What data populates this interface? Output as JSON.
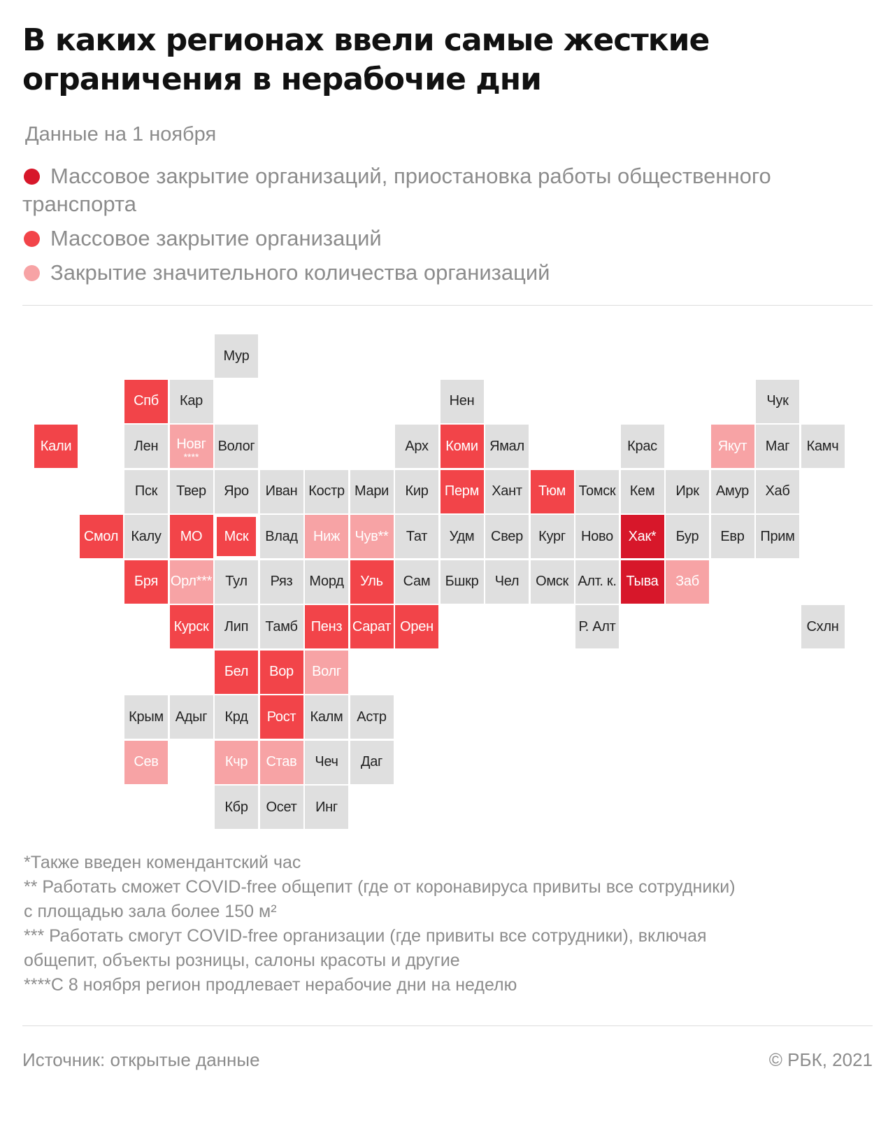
{
  "title_lines": [
    "В каких регионах ввели самые жесткие",
    "ограничения в нерабочие дни"
  ],
  "subtitle": "Данные на 1 ноября",
  "legend": [
    {
      "level": 1,
      "color": "#d7172a",
      "label": "Массовое закрытие организаций, приостановка работы общественного транспорта"
    },
    {
      "level": 2,
      "color": "#f24449",
      "label": "Массовое закрытие организаций"
    },
    {
      "level": 3,
      "color": "#f7a3a5",
      "label": "Закрытие значительного количества организаций"
    }
  ],
  "colors": {
    "none": "#dfdfdf",
    "level1": "#d7172a",
    "level2": "#f24449",
    "level3": "#f7a3a5"
  },
  "map": {
    "grid_columns": 18,
    "grid_rows": 11,
    "regions": [
      {
        "label": "Мур",
        "col": 5,
        "row": 0,
        "level": 0
      },
      {
        "label": "Спб",
        "col": 3,
        "row": 1,
        "level": 2
      },
      {
        "label": "Кар",
        "col": 4,
        "row": 1,
        "level": 0
      },
      {
        "label": "Нен",
        "col": 10,
        "row": 1,
        "level": 0
      },
      {
        "label": "Чук",
        "col": 17,
        "row": 1,
        "level": 0
      },
      {
        "label": "Кали",
        "col": 1,
        "row": 2,
        "level": 2
      },
      {
        "label": "Лен",
        "col": 3,
        "row": 2,
        "level": 0
      },
      {
        "label": "Новг",
        "col": 4,
        "row": 2,
        "level": 3,
        "mark": "****"
      },
      {
        "label": "Волог",
        "col": 5,
        "row": 2,
        "level": 0
      },
      {
        "label": "Арх",
        "col": 9,
        "row": 2,
        "level": 0
      },
      {
        "label": "Коми",
        "col": 10,
        "row": 2,
        "level": 2
      },
      {
        "label": "Ямал",
        "col": 11,
        "row": 2,
        "level": 0
      },
      {
        "label": "Крас",
        "col": 14,
        "row": 2,
        "level": 0
      },
      {
        "label": "Якут",
        "col": 16,
        "row": 2,
        "level": 3
      },
      {
        "label": "Маг",
        "col": 17,
        "row": 2,
        "level": 0
      },
      {
        "label": "Камч",
        "col": 18,
        "row": 2,
        "level": 0
      },
      {
        "label": "Пск",
        "col": 3,
        "row": 3,
        "level": 0
      },
      {
        "label": "Твер",
        "col": 4,
        "row": 3,
        "level": 0
      },
      {
        "label": "Яро",
        "col": 5,
        "row": 3,
        "level": 0
      },
      {
        "label": "Иван",
        "col": 6,
        "row": 3,
        "level": 0
      },
      {
        "label": "Костр",
        "col": 7,
        "row": 3,
        "level": 0
      },
      {
        "label": "Мари",
        "col": 8,
        "row": 3,
        "level": 0
      },
      {
        "label": "Кир",
        "col": 9,
        "row": 3,
        "level": 0
      },
      {
        "label": "Перм",
        "col": 10,
        "row": 3,
        "level": 2
      },
      {
        "label": "Хант",
        "col": 11,
        "row": 3,
        "level": 0
      },
      {
        "label": "Тюм",
        "col": 12,
        "row": 3,
        "level": 2
      },
      {
        "label": "Томск",
        "col": 13,
        "row": 3,
        "level": 0
      },
      {
        "label": "Кем",
        "col": 14,
        "row": 3,
        "level": 0
      },
      {
        "label": "Ирк",
        "col": 15,
        "row": 3,
        "level": 0
      },
      {
        "label": "Амур",
        "col": 16,
        "row": 3,
        "level": 0
      },
      {
        "label": "Хаб",
        "col": 17,
        "row": 3,
        "level": 0
      },
      {
        "label": "Смол",
        "col": 2,
        "row": 4,
        "level": 2
      },
      {
        "label": "Калу",
        "col": 3,
        "row": 4,
        "level": 0
      },
      {
        "label": "МО",
        "col": 4,
        "row": 4,
        "level": 2
      },
      {
        "label": "Мск",
        "col": 5,
        "row": 4,
        "level": 2,
        "inset": true
      },
      {
        "label": "Влад",
        "col": 6,
        "row": 4,
        "level": 0
      },
      {
        "label": "Ниж",
        "col": 7,
        "row": 4,
        "level": 3
      },
      {
        "label": "Чув**",
        "col": 8,
        "row": 4,
        "level": 3
      },
      {
        "label": "Тат",
        "col": 9,
        "row": 4,
        "level": 0
      },
      {
        "label": "Удм",
        "col": 10,
        "row": 4,
        "level": 0
      },
      {
        "label": "Свер",
        "col": 11,
        "row": 4,
        "level": 0
      },
      {
        "label": "Кург",
        "col": 12,
        "row": 4,
        "level": 0
      },
      {
        "label": "Ново",
        "col": 13,
        "row": 4,
        "level": 0
      },
      {
        "label": "Хак*",
        "col": 14,
        "row": 4,
        "level": 1
      },
      {
        "label": "Бур",
        "col": 15,
        "row": 4,
        "level": 0
      },
      {
        "label": "Евр",
        "col": 16,
        "row": 4,
        "level": 0
      },
      {
        "label": "Прим",
        "col": 17,
        "row": 4,
        "level": 0
      },
      {
        "label": "Бря",
        "col": 3,
        "row": 5,
        "level": 2
      },
      {
        "label": "Орл***",
        "col": 4,
        "row": 5,
        "level": 3
      },
      {
        "label": "Тул",
        "col": 5,
        "row": 5,
        "level": 0
      },
      {
        "label": "Ряз",
        "col": 6,
        "row": 5,
        "level": 0
      },
      {
        "label": "Морд",
        "col": 7,
        "row": 5,
        "level": 0
      },
      {
        "label": "Уль",
        "col": 8,
        "row": 5,
        "level": 2
      },
      {
        "label": "Сам",
        "col": 9,
        "row": 5,
        "level": 0
      },
      {
        "label": "Бшкр",
        "col": 10,
        "row": 5,
        "level": 0
      },
      {
        "label": "Чел",
        "col": 11,
        "row": 5,
        "level": 0
      },
      {
        "label": "Омск",
        "col": 12,
        "row": 5,
        "level": 0
      },
      {
        "label": "Алт. к.",
        "col": 13,
        "row": 5,
        "level": 0
      },
      {
        "label": "Тыва",
        "col": 14,
        "row": 5,
        "level": 1
      },
      {
        "label": "Заб",
        "col": 15,
        "row": 5,
        "level": 3
      },
      {
        "label": "Курск",
        "col": 4,
        "row": 6,
        "level": 2
      },
      {
        "label": "Лип",
        "col": 5,
        "row": 6,
        "level": 0
      },
      {
        "label": "Тамб",
        "col": 6,
        "row": 6,
        "level": 0
      },
      {
        "label": "Пенз",
        "col": 7,
        "row": 6,
        "level": 2
      },
      {
        "label": "Сарат",
        "col": 8,
        "row": 6,
        "level": 2
      },
      {
        "label": "Орен",
        "col": 9,
        "row": 6,
        "level": 2
      },
      {
        "label": "Р. Алт",
        "col": 13,
        "row": 6,
        "level": 0
      },
      {
        "label": "Схлн",
        "col": 18,
        "row": 6,
        "level": 0
      },
      {
        "label": "Бел",
        "col": 5,
        "row": 7,
        "level": 2
      },
      {
        "label": "Вор",
        "col": 6,
        "row": 7,
        "level": 2
      },
      {
        "label": "Волг",
        "col": 7,
        "row": 7,
        "level": 3
      },
      {
        "label": "Крым",
        "col": 3,
        "row": 8,
        "level": 0
      },
      {
        "label": "Адыг",
        "col": 4,
        "row": 8,
        "level": 0
      },
      {
        "label": "Крд",
        "col": 5,
        "row": 8,
        "level": 0
      },
      {
        "label": "Рост",
        "col": 6,
        "row": 8,
        "level": 2
      },
      {
        "label": "Калм",
        "col": 7,
        "row": 8,
        "level": 0
      },
      {
        "label": "Астр",
        "col": 8,
        "row": 8,
        "level": 0
      },
      {
        "label": "Сев",
        "col": 3,
        "row": 9,
        "level": 3
      },
      {
        "label": "Кчр",
        "col": 5,
        "row": 9,
        "level": 3
      },
      {
        "label": "Став",
        "col": 6,
        "row": 9,
        "level": 3
      },
      {
        "label": "Чеч",
        "col": 7,
        "row": 9,
        "level": 0
      },
      {
        "label": "Даг",
        "col": 8,
        "row": 9,
        "level": 0
      },
      {
        "label": "Кбр",
        "col": 5,
        "row": 10,
        "level": 0
      },
      {
        "label": "Осет",
        "col": 6,
        "row": 10,
        "level": 0
      },
      {
        "label": "Инг",
        "col": 7,
        "row": 10,
        "level": 0
      }
    ]
  },
  "notes": [
    "*Также введен комендантский час",
    "** Работать сможет COVID-free общепит (где от коронавируса привиты все сотрудники)",
    "с площадью зала более 150 м²",
    "*** Работать смогут COVID-free организации (где привиты все сотрудники), включая",
    "общепит, объекты розницы, салоны красоты и другие",
    "****С 8 ноября регион продлевает нерабочие дни на неделю"
  ],
  "footer": {
    "source": "Источник:  открытые данные",
    "copyright": "©  РБК, 2021"
  }
}
